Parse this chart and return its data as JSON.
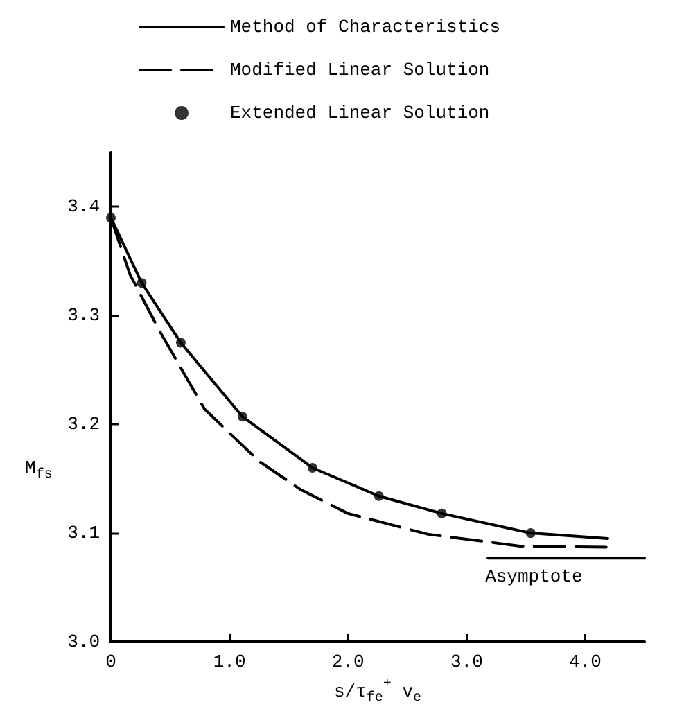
{
  "chart_data": {
    "type": "line",
    "xlabel": "s/τ$_{fe}$$^{+}$ v$_{e}$",
    "ylabel": "M$_{fs}$",
    "xlim": [
      0,
      4.5
    ],
    "ylim": [
      3.0,
      3.45
    ],
    "xticks": [
      0,
      {
        "value": 1,
        "label": "1.0"
      },
      {
        "value": 2,
        "label": "2.0"
      },
      {
        "value": 3,
        "label": "3.0"
      },
      {
        "value": 4,
        "label": "4.0"
      }
    ],
    "yticks": [
      {
        "value": 3,
        "label": "3.0"
      },
      {
        "value": 3.1,
        "label": "3.1"
      },
      {
        "value": 3.2,
        "label": "3.2"
      },
      {
        "value": 3.3,
        "label": "3.3"
      },
      {
        "value": 3.4,
        "label": "3.4"
      }
    ],
    "grid": false,
    "legend": "top",
    "marker": "none",
    "series": [
      {
        "name": "Method of Characteristics",
        "color": "#000000",
        "line_style": "solid",
        "x": [
          0,
          0.26,
          0.59,
          1.11,
          1.7,
          2.26,
          2.79,
          3.54,
          4.19
        ],
        "values": [
          3.39,
          3.33,
          3.275,
          3.207,
          3.16,
          3.134,
          3.118,
          3.1,
          3.095
        ]
      },
      {
        "name": "Modified Linear Solution",
        "color": "#000000",
        "line_style": "dashed",
        "x": [
          0,
          0.16,
          0.41,
          0.79,
          1.25,
          1.6,
          2.0,
          2.67,
          3.45,
          4.18
        ],
        "values": [
          3.39,
          3.338,
          3.286,
          3.214,
          3.166,
          3.14,
          3.118,
          3.099,
          3.088,
          3.087
        ]
      },
      {
        "name": "Extended Linear Solution",
        "type": "scatter",
        "marker": "circle",
        "color": "#000000",
        "x": [
          0,
          0.26,
          0.59,
          1.11,
          1.7,
          2.26,
          2.79,
          3.54
        ],
        "values": [
          3.39,
          3.33,
          3.275,
          3.207,
          3.16,
          3.134,
          3.118,
          3.1
        ]
      },
      {
        "name": "Asymptote",
        "color": "#000000",
        "line_style": "solid",
        "x": [
          3.18,
          4.5
        ],
        "values": [
          3.077,
          3.077
        ]
      }
    ]
  }
}
